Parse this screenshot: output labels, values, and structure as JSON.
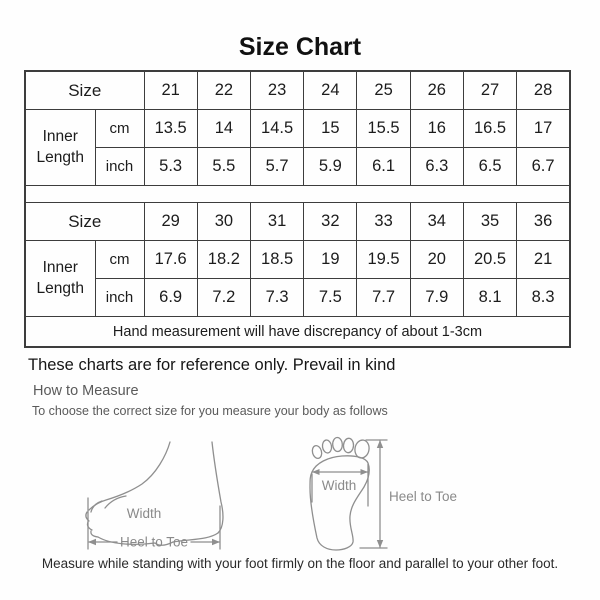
{
  "title": "Size Chart",
  "table": {
    "size_label": "Size",
    "inner_length_label": "Inner Length",
    "cm_label": "cm",
    "inch_label": "inch",
    "blocks": [
      {
        "sizes": [
          "21",
          "22",
          "23",
          "24",
          "25",
          "26",
          "27",
          "28"
        ],
        "cm": [
          "13.5",
          "14",
          "14.5",
          "15",
          "15.5",
          "16",
          "16.5",
          "17"
        ],
        "inch": [
          "5.3",
          "5.5",
          "5.7",
          "5.9",
          "6.1",
          "6.3",
          "6.5",
          "6.7"
        ]
      },
      {
        "sizes": [
          "29",
          "30",
          "31",
          "32",
          "33",
          "34",
          "35",
          "36"
        ],
        "cm": [
          "17.6",
          "18.2",
          "18.5",
          "19",
          "19.5",
          "20",
          "20.5",
          "21"
        ],
        "inch": [
          "6.9",
          "7.2",
          "7.3",
          "7.5",
          "7.7",
          "7.9",
          "8.1",
          "8.3"
        ]
      }
    ],
    "note": "Hand measurement will have discrepancy of about 1-3cm"
  },
  "notes": {
    "reference": "These charts are for reference only. Prevail in kind",
    "how_to_measure": "How to Measure",
    "instruction": "To choose the correct size for you measure your body as follows",
    "caption": "Measure while standing with your foot firmly on the floor and parallel to your other foot."
  },
  "diagrams": {
    "side_view": {
      "width_label": "Width",
      "heel_to_toe_label": "Heel to Toe"
    },
    "sole_view": {
      "width_label": "Width",
      "heel_to_toe_label": "Heel to Toe"
    }
  },
  "colors": {
    "background": "#fefefe",
    "text": "#1c1c1c",
    "muted_text": "#5a5a5a",
    "border": "#3d3d3d",
    "diagram_line": "#8f8f8f"
  }
}
